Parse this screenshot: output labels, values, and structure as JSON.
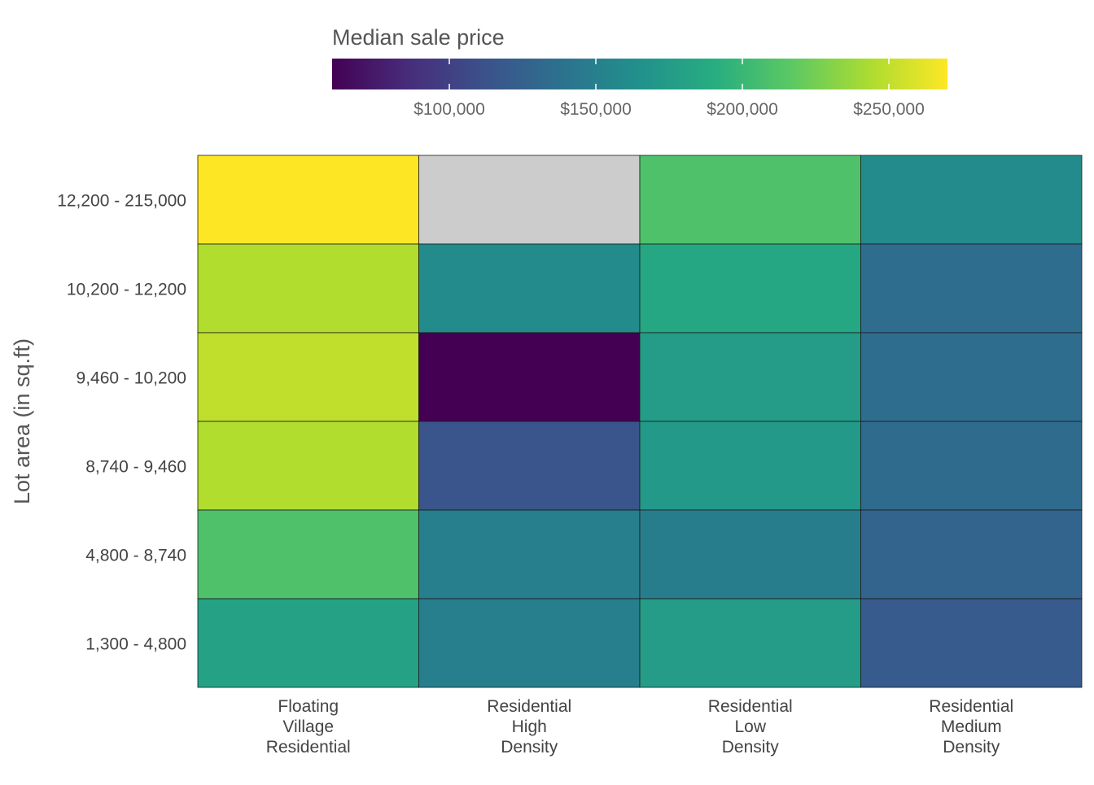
{
  "chart_data": {
    "type": "heatmap",
    "legend": {
      "title": "Median sale price",
      "position": "top",
      "scale_min": 60000,
      "scale_max": 270000,
      "ticks": [
        {
          "value": 100000,
          "label": "$100,000"
        },
        {
          "value": 150000,
          "label": "$150,000"
        },
        {
          "value": 200000,
          "label": "$200,000"
        },
        {
          "value": 250000,
          "label": "$250,000"
        }
      ]
    },
    "ylabel": "Lot area (in sq.ft)",
    "xlabel": "",
    "x_categories": [
      [
        "Floating",
        "Village",
        "Residential"
      ],
      [
        "Residential",
        "High",
        "Density"
      ],
      [
        "Residential",
        "Low",
        "Density"
      ],
      [
        "Residential",
        "Medium",
        "Density"
      ]
    ],
    "y_categories": [
      "12,200 - 215,000",
      "10,200 - 12,200",
      "9,460 - 10,200",
      "8,740 - 9,460",
      "4,800 - 8,740",
      "1,300 - 4,800"
    ],
    "values": [
      [
        270000,
        null,
        210000,
        160000
      ],
      [
        245000,
        160000,
        185000,
        135000
      ],
      [
        250000,
        60000,
        175000,
        135000
      ],
      [
        245000,
        115000,
        172000,
        133000
      ],
      [
        210000,
        150000,
        148000,
        127000
      ],
      [
        180000,
        150000,
        175000,
        120000
      ]
    ],
    "missing_color": "#cccccc",
    "palette": [
      "#440154",
      "#472d7b",
      "#3b528b",
      "#2c728e",
      "#21918c",
      "#28ae80",
      "#5ec962",
      "#addc30",
      "#fde725"
    ]
  }
}
